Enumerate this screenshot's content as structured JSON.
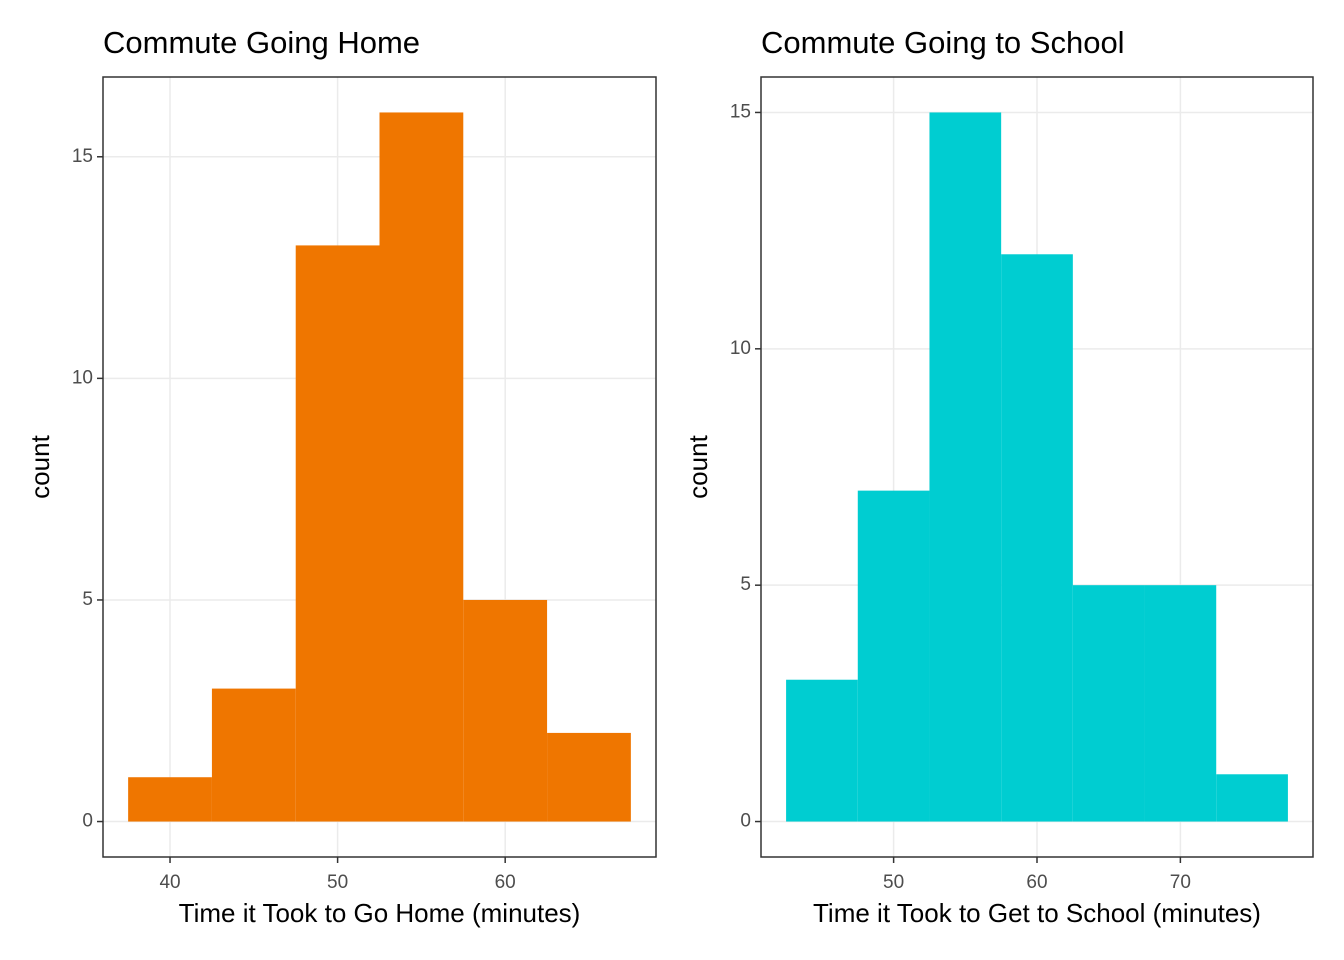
{
  "chart_data": [
    {
      "type": "histogram",
      "title": "Commute Going Home",
      "xlabel": "Time it Took to Go Home (minutes)",
      "ylabel": "count",
      "bins": [
        37.5,
        42.5,
        47.5,
        52.5,
        57.5,
        62.5,
        67.5
      ],
      "values": [
        1,
        3,
        13,
        16,
        5,
        2
      ],
      "color": "#ef7600",
      "xlim": [
        36,
        69
      ],
      "xticks": [
        40,
        50,
        60
      ],
      "ylim": [
        -0.8,
        16.8
      ],
      "yticks": [
        0,
        5,
        10,
        15
      ],
      "grid": true
    },
    {
      "type": "histogram",
      "title": "Commute Going to School",
      "xlabel": "Time it Took to Get to School (minutes)",
      "ylabel": "count",
      "bins": [
        42.5,
        47.5,
        52.5,
        57.5,
        62.5,
        67.5,
        72.5,
        77.5
      ],
      "values": [
        3,
        7,
        15,
        12,
        5,
        5,
        1
      ],
      "color": "#00cdd1",
      "xlim": [
        40.75,
        79.25
      ],
      "xticks": [
        50,
        60,
        70
      ],
      "ylim": [
        -0.75,
        15.75
      ],
      "yticks": [
        0,
        5,
        10,
        15
      ],
      "grid": true
    }
  ]
}
